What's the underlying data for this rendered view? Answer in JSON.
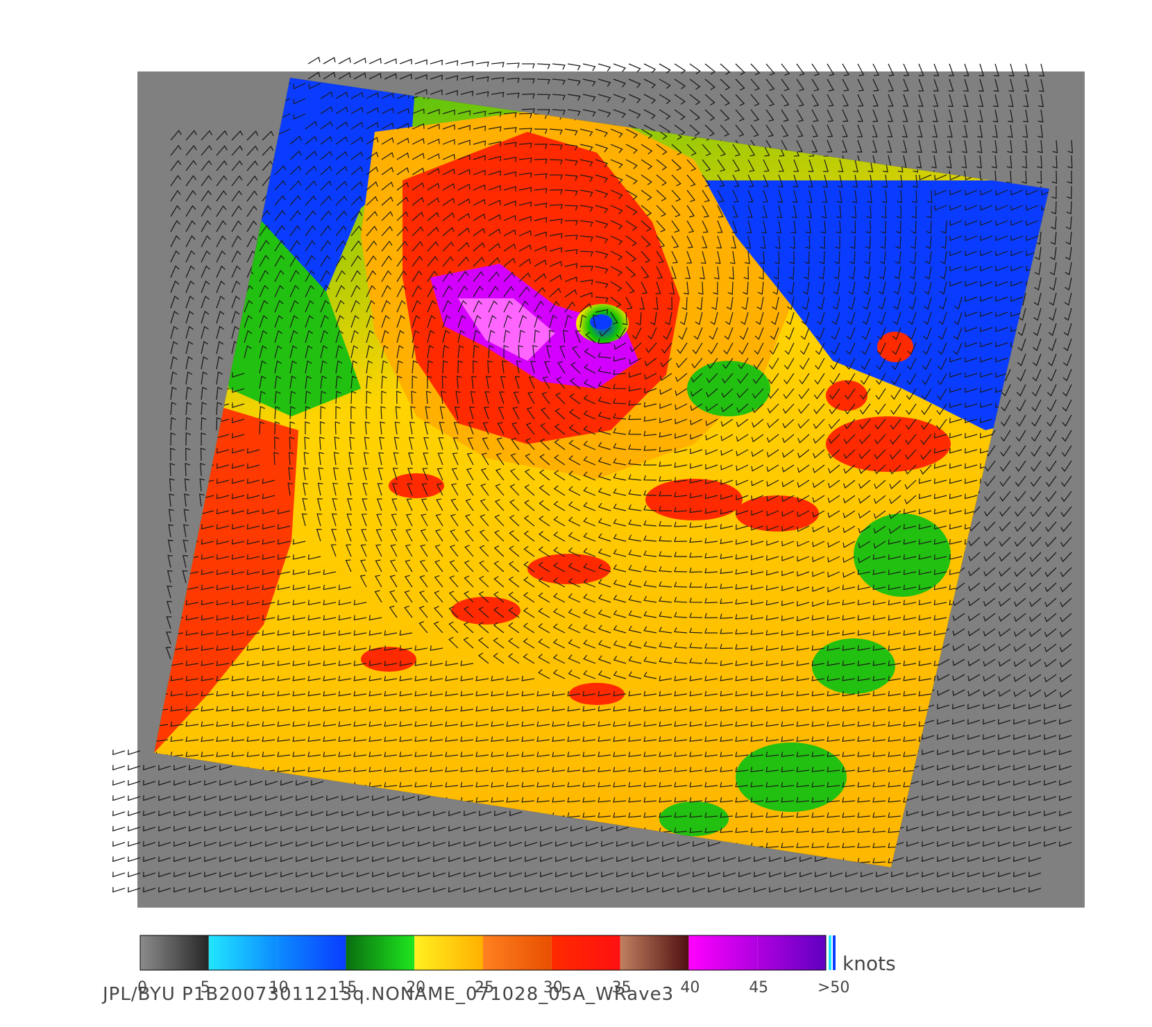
{
  "map": {
    "background_gray": "#808080",
    "swath_description_colors": [
      "#0a3cff",
      "#11c400",
      "#ffe600",
      "#ff9a1a",
      "#ff2a00",
      "#e600ff"
    ]
  },
  "legend": {
    "unit_label": "knots",
    "ticks": [
      "0",
      "5",
      "10",
      "15",
      "20",
      "25",
      "30",
      "35",
      "40",
      "45",
      ">50"
    ],
    "segments": [
      {
        "from": 0,
        "to": 5,
        "colors": [
          "#8c8c8c",
          "#262626"
        ]
      },
      {
        "from": 5,
        "to": 10,
        "colors": [
          "#22e6ff",
          "#0c8cff"
        ]
      },
      {
        "from": 10,
        "to": 15,
        "colors": [
          "#0c8cff",
          "#0a3cff"
        ]
      },
      {
        "from": 15,
        "to": 20,
        "colors": [
          "#0a6e10",
          "#1ee61e"
        ]
      },
      {
        "from": 20,
        "to": 25,
        "colors": [
          "#fff020",
          "#ffb000"
        ]
      },
      {
        "from": 25,
        "to": 30,
        "colors": [
          "#ff8020",
          "#e85000"
        ]
      },
      {
        "from": 30,
        "to": 35,
        "colors": [
          "#ff2a00",
          "#ff1010"
        ]
      },
      {
        "from": 35,
        "to": 40,
        "colors": [
          "#c08060",
          "#501010"
        ]
      },
      {
        "from": 40,
        "to": 45,
        "colors": [
          "#ff00ff",
          "#b000e0"
        ]
      },
      {
        "from": 45,
        "to": 50,
        "colors": [
          "#b000e0",
          "#6000c0"
        ]
      }
    ]
  },
  "credit": "JPL/BYU  P1B20073011213q.NONAME_071028_05A_WRave3"
}
